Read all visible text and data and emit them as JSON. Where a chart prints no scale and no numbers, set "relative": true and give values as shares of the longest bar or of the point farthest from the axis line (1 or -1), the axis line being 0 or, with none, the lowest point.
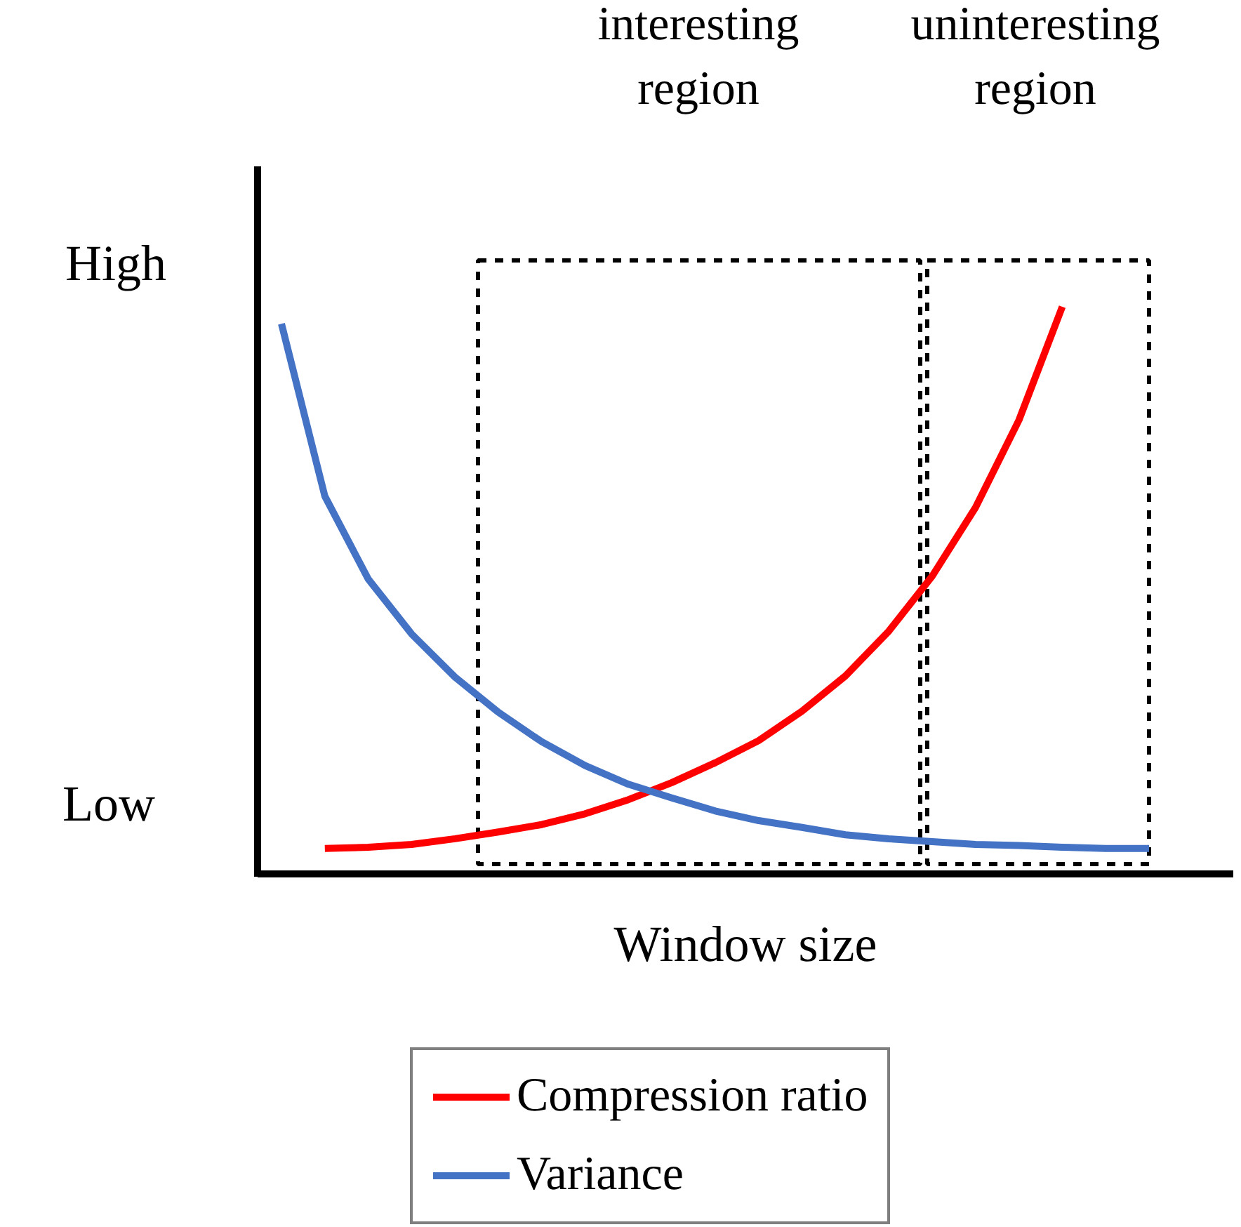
{
  "chart_data": {
    "type": "line",
    "relative": true,
    "xlabel": "Window size",
    "categories": [
      null,
      null,
      null,
      null,
      null,
      null,
      null,
      null,
      null,
      null,
      null,
      null,
      null,
      null,
      null,
      null,
      null,
      null,
      null,
      null,
      null
    ],
    "series": [
      {
        "name": "Compression ratio",
        "color": "#ff0000",
        "values": [
          null,
          0.045,
          0.047,
          0.052,
          0.062,
          0.074,
          0.087,
          0.106,
          0.131,
          0.161,
          0.196,
          0.235,
          0.287,
          0.349,
          0.428,
          0.525,
          0.646,
          0.8,
          1.0,
          null,
          null
        ]
      },
      {
        "name": "Variance",
        "color": "#4472c4",
        "values": [
          0.97,
          0.666,
          0.52,
          0.423,
          0.347,
          0.285,
          0.233,
          0.191,
          0.158,
          0.134,
          0.111,
          0.094,
          0.082,
          0.069,
          0.062,
          0.057,
          0.052,
          0.05,
          0.047,
          0.045,
          0.045
        ]
      }
    ],
    "annotations": [
      "High",
      "Low",
      "interesting region",
      "uninteresting region"
    ],
    "grid": false,
    "legend": "bottom",
    "marker": "none",
    "line_style": "solid"
  }
}
